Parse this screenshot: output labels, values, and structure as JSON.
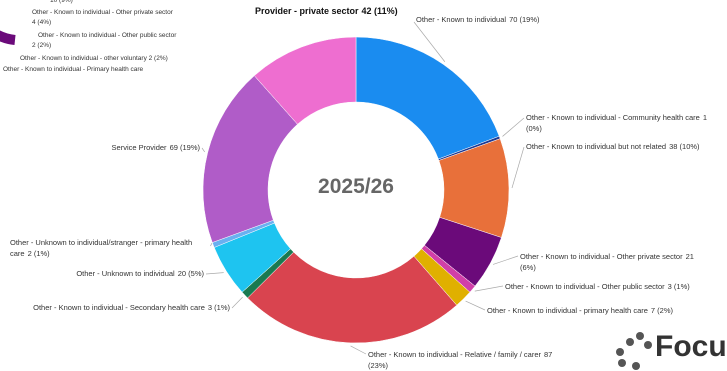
{
  "chart_data": {
    "type": "donut",
    "center_label": "2025/26",
    "series": [
      {
        "name": "Other - Known to individual",
        "values": [
          70
        ],
        "value_labels": [
          "70 (19%)"
        ],
        "color": "#1a8cf0"
      },
      {
        "name": "Other - Known to individual - Community health care",
        "values": [
          1
        ],
        "value_labels": [
          "1 (0%)"
        ],
        "color": "#1f3a93"
      },
      {
        "name": "Other - Known to individual but not related",
        "values": [
          38
        ],
        "value_labels": [
          "38 (10%)"
        ],
        "color": "#e8703a"
      },
      {
        "name": "Other - Known to individual - Other private sector",
        "values": [
          21
        ],
        "value_labels": [
          "21 (6%)"
        ],
        "color": "#6b0a7a"
      },
      {
        "name": "Other - Known to individual - Other public sector",
        "values": [
          3
        ],
        "value_labels": [
          "3 (1%)"
        ],
        "color": "#d13fa8"
      },
      {
        "name": "Other - Known to individual - primary health care",
        "values": [
          7
        ],
        "value_labels": [
          "7 (2%)"
        ],
        "color": "#e0b000"
      },
      {
        "name": "Other - Known to individual - Relative / family / carer",
        "values": [
          87
        ],
        "value_labels": [
          "87 (23%)"
        ],
        "color": "#d9444f"
      },
      {
        "name": "Other - Known to individual - Secondary health care",
        "values": [
          3
        ],
        "value_labels": [
          "3 (1%)"
        ],
        "color": "#1a7a50"
      },
      {
        "name": "Other - Unknown to individual",
        "values": [
          20
        ],
        "value_labels": [
          "20 (5%)"
        ],
        "color": "#1ec4f0"
      },
      {
        "name": "Other - Unknown to individual/stranger - primary health care",
        "values": [
          2
        ],
        "value_labels": [
          "2 (1%)"
        ],
        "color": "#6ab0f0"
      },
      {
        "name": "Service Provider",
        "values": [
          69
        ],
        "value_labels": [
          "69 (19%)"
        ],
        "color": "#b05cc8"
      },
      {
        "name": "Provider - private sector",
        "values": [
          42
        ],
        "value_labels": [
          "42 (11%)"
        ],
        "color": "#ee6ed0"
      }
    ]
  },
  "partial_chart_labels": [
    "10 (9%)",
    "Other - Known to individual - Other private sector",
    "4 (4%)",
    "Other - Known to individual - Other public sector",
    "2 (2%)",
    "Other - Known to individual - other voluntary 2 (2%)",
    "Other - Known to individual - Primary health care"
  ],
  "logo": "Focu"
}
